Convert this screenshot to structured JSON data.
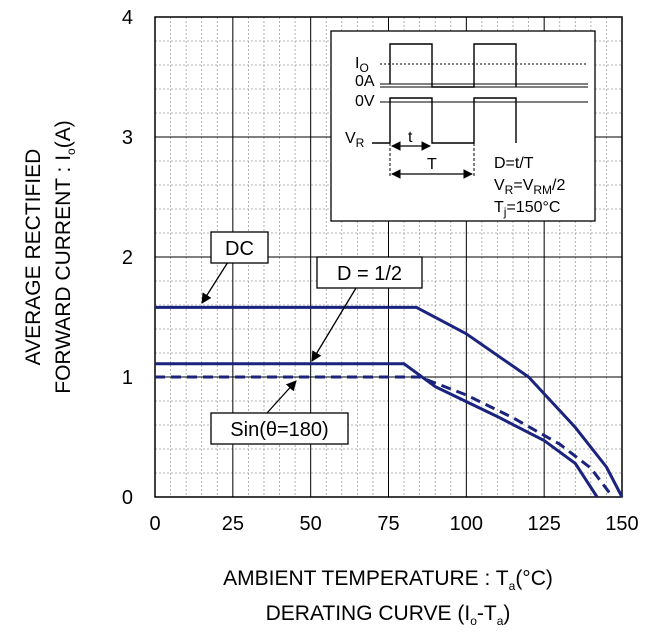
{
  "chart_data": {
    "type": "line",
    "xlabel": {
      "main": "AMBIENT TEMPERATURE : T",
      "sub": "a",
      "tail": "(°C)"
    },
    "subtitle": {
      "main": "DERATING CURVE (I",
      "sub1": "o",
      "mid": "-T",
      "sub2": "a",
      "tail": ")"
    },
    "ylabel_line1": "AVERAGE RECTIFIED",
    "ylabel_line2": {
      "main": "FORWARD CURRENT : I",
      "sub": "o",
      "tail": "(A)"
    },
    "xlim": [
      0,
      150
    ],
    "ylim": [
      0,
      4
    ],
    "x_ticks": [
      "0",
      "25",
      "50",
      "75",
      "100",
      "125",
      "150"
    ],
    "y_ticks": [
      "0",
      "1",
      "2",
      "3",
      "4"
    ],
    "grid": true,
    "series": [
      {
        "name": "DC",
        "style": "solid",
        "points": [
          [
            0,
            1.58
          ],
          [
            84,
            1.58
          ],
          [
            100,
            1.36
          ],
          [
            120,
            1.0
          ],
          [
            135,
            0.58
          ],
          [
            145,
            0.25
          ],
          [
            150,
            0
          ]
        ]
      },
      {
        "name": "D = 1/2",
        "style": "solid",
        "points": [
          [
            0,
            1.11
          ],
          [
            80,
            1.11
          ],
          [
            90,
            0.92
          ],
          [
            110,
            0.67
          ],
          [
            125,
            0.47
          ],
          [
            135,
            0.28
          ],
          [
            142,
            0
          ]
        ]
      },
      {
        "name": "Sin(θ=180)",
        "style": "dashed",
        "points": [
          [
            0,
            1.0
          ],
          [
            85,
            1.0
          ],
          [
            100,
            0.85
          ],
          [
            115,
            0.66
          ],
          [
            130,
            0.44
          ],
          [
            140,
            0.24
          ],
          [
            147,
            0
          ]
        ]
      }
    ],
    "callouts": [
      {
        "label": "DC",
        "target": [
          15,
          1.58
        ]
      },
      {
        "label": "D = 1/2",
        "target": [
          51,
          1.11
        ]
      },
      {
        "label": "Sin(θ=180)",
        "target": [
          43,
          1.0
        ]
      }
    ],
    "inset": {
      "io": {
        "main": "I",
        "sub": "O"
      },
      "zero_a": "0A",
      "zero_v": "0V",
      "vr": {
        "main": "V",
        "sub": "R"
      },
      "t": "t",
      "T": "T",
      "duty": "D=t/T",
      "vr_eq": {
        "a": "V",
        "a_sub": "R",
        "b": "=V",
        "b_sub": "RM",
        "c": "/2"
      },
      "tj_eq": {
        "a": "T",
        "a_sub": "j",
        "b": "=150°C"
      }
    },
    "colors": {
      "curve": "#1a237e",
      "grid_major": "#000000",
      "grid_minor": "#9e9e9e"
    }
  }
}
